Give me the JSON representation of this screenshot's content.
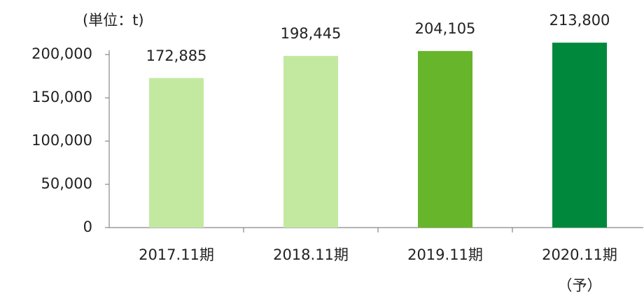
{
  "chart_data": {
    "type": "bar",
    "unit_label": "(単位：t)",
    "categories": [
      "2017.11期",
      "2018.11期",
      "2019.11期",
      "2020.11期"
    ],
    "category_notes": [
      null,
      null,
      null,
      "（予）"
    ],
    "values": [
      172885,
      198445,
      204105,
      213800
    ],
    "value_labels": [
      "172,885",
      "198,445",
      "204,105",
      "213,800"
    ],
    "colors": [
      "#c3e9a1",
      "#c3e9a1",
      "#67b52a",
      "#00893c"
    ],
    "ylim": [
      0,
      205000
    ],
    "yticks": [
      0,
      {
        "value": 50000,
        "label": "50,000"
      },
      {
        "value": 100000,
        "label": "100,000"
      },
      {
        "value": 150000,
        "label": "150,000"
      },
      {
        "value": 200000,
        "label": "200,000"
      }
    ],
    "grid": false
  }
}
